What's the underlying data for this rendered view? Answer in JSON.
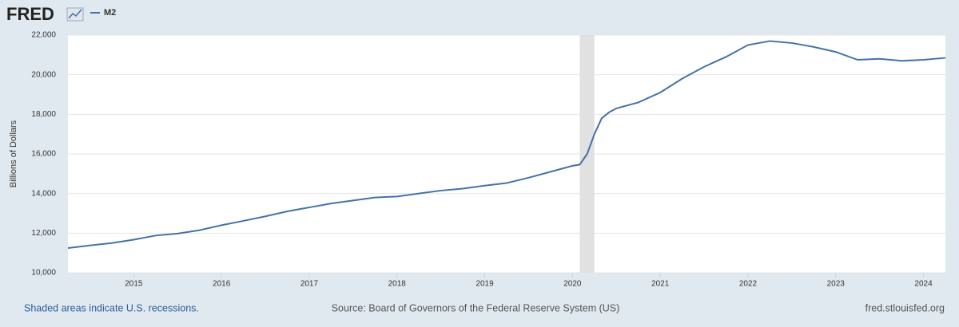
{
  "chart_data": {
    "type": "line",
    "logo": "FRED",
    "y_label": "Billions of Dollars",
    "recession_note": "Shaded areas indicate U.S. recessions.",
    "source": "Source: Board of Governors of the Federal Reserve System (US)",
    "site": "fred.stlouisfed.org",
    "x": [
      2014.25,
      2014.5,
      2014.75,
      2015.0,
      2015.25,
      2015.5,
      2015.75,
      2016.0,
      2016.25,
      2016.5,
      2016.75,
      2017.0,
      2017.25,
      2017.5,
      2017.75,
      2018.0,
      2018.25,
      2018.5,
      2018.75,
      2019.0,
      2019.25,
      2019.5,
      2019.75,
      2020.0,
      2020.083,
      2020.167,
      2020.25,
      2020.333,
      2020.417,
      2020.5,
      2020.75,
      2021.0,
      2021.25,
      2021.5,
      2021.75,
      2022.0,
      2022.25,
      2022.5,
      2022.75,
      2023.0,
      2023.25,
      2023.5,
      2023.75,
      2024.0,
      2024.25
    ],
    "series": [
      {
        "name": "M2",
        "color": "#4572a7",
        "values": [
          11250,
          11380,
          11500,
          11670,
          11880,
          11980,
          12150,
          12400,
          12620,
          12850,
          13100,
          13300,
          13500,
          13650,
          13800,
          13850,
          14000,
          14150,
          14250,
          14400,
          14530,
          14800,
          15100,
          15400,
          15460,
          16000,
          17000,
          17800,
          18100,
          18300,
          18600,
          19100,
          19800,
          20400,
          20900,
          21500,
          21700,
          21600,
          21400,
          21150,
          20750,
          20800,
          20700,
          20750,
          20850
        ]
      }
    ],
    "recessions": [
      [
        2020.083,
        2020.25
      ]
    ],
    "xlim": [
      2014.25,
      2024.25
    ],
    "xticks": [
      2015,
      2016,
      2017,
      2018,
      2019,
      2020,
      2021,
      2022,
      2023,
      2024
    ],
    "ylim": [
      10000,
      22000
    ],
    "yticks": [
      {
        "value": 10000,
        "label": "10,000"
      },
      {
        "value": 12000,
        "label": "12,000"
      },
      {
        "value": 14000,
        "label": "14,000"
      },
      {
        "value": 16000,
        "label": "16,000"
      },
      {
        "value": 18000,
        "label": "18,000"
      },
      {
        "value": 20000,
        "label": "20,000"
      },
      {
        "value": 22000,
        "label": "22,000"
      }
    ],
    "grid": true
  }
}
